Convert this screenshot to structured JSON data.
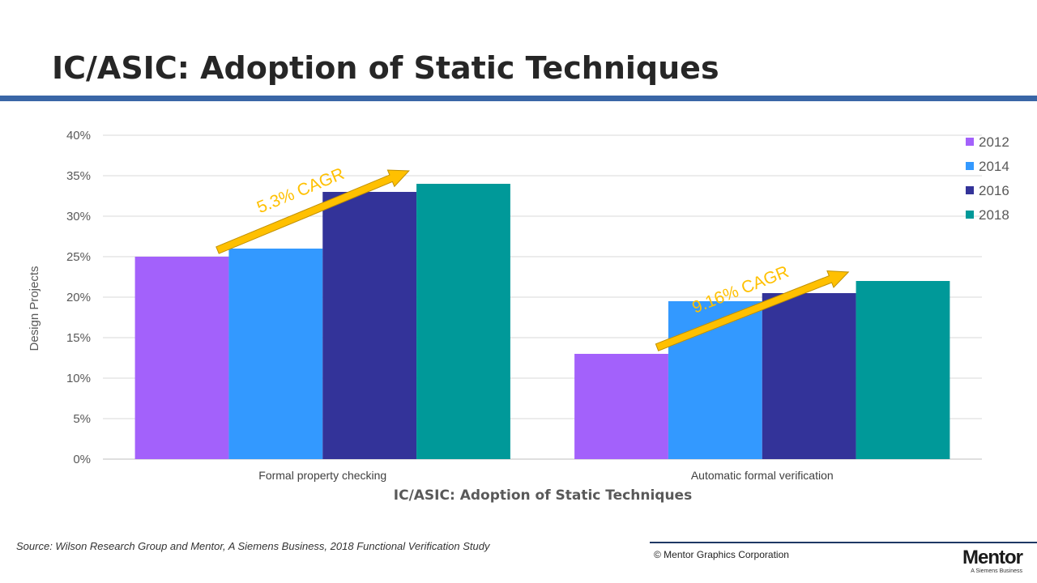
{
  "slide": {
    "title": "IC/ASIC: Adoption of Static Techniques"
  },
  "chart_data": {
    "type": "bar",
    "title": "",
    "xlabel": "IC/ASIC: Adoption of Static Techniques",
    "ylabel": "Design Projects",
    "ylim": [
      0,
      40
    ],
    "yticks": [
      "0%",
      "5%",
      "10%",
      "15%",
      "20%",
      "25%",
      "30%",
      "35%",
      "40%"
    ],
    "categories": [
      "Formal property checking",
      "Automatic formal verification"
    ],
    "series": [
      {
        "name": "2012",
        "color": "#a361fb",
        "values": [
          25,
          13
        ]
      },
      {
        "name": "2014",
        "color": "#3399ff",
        "values": [
          26,
          19.5
        ]
      },
      {
        "name": "2016",
        "color": "#333399",
        "values": [
          33,
          20.5
        ]
      },
      {
        "name": "2018",
        "color": "#009999",
        "values": [
          34,
          22
        ]
      }
    ],
    "grid": true,
    "legend": "top-right",
    "annotations": [
      {
        "text": "5.3% CAGR",
        "category_index": 0
      },
      {
        "text": "9.16% CAGR",
        "category_index": 1
      }
    ],
    "annotation_color": "#ffc000"
  },
  "footer": {
    "source": "Source:  Wilson Research Group and Mentor, A Siemens Business, 2018 Functional Verification Study",
    "copyright": "© Mentor Graphics Corporation",
    "logo_text": "Mentor",
    "logo_tagline": "A Siemens Business"
  }
}
